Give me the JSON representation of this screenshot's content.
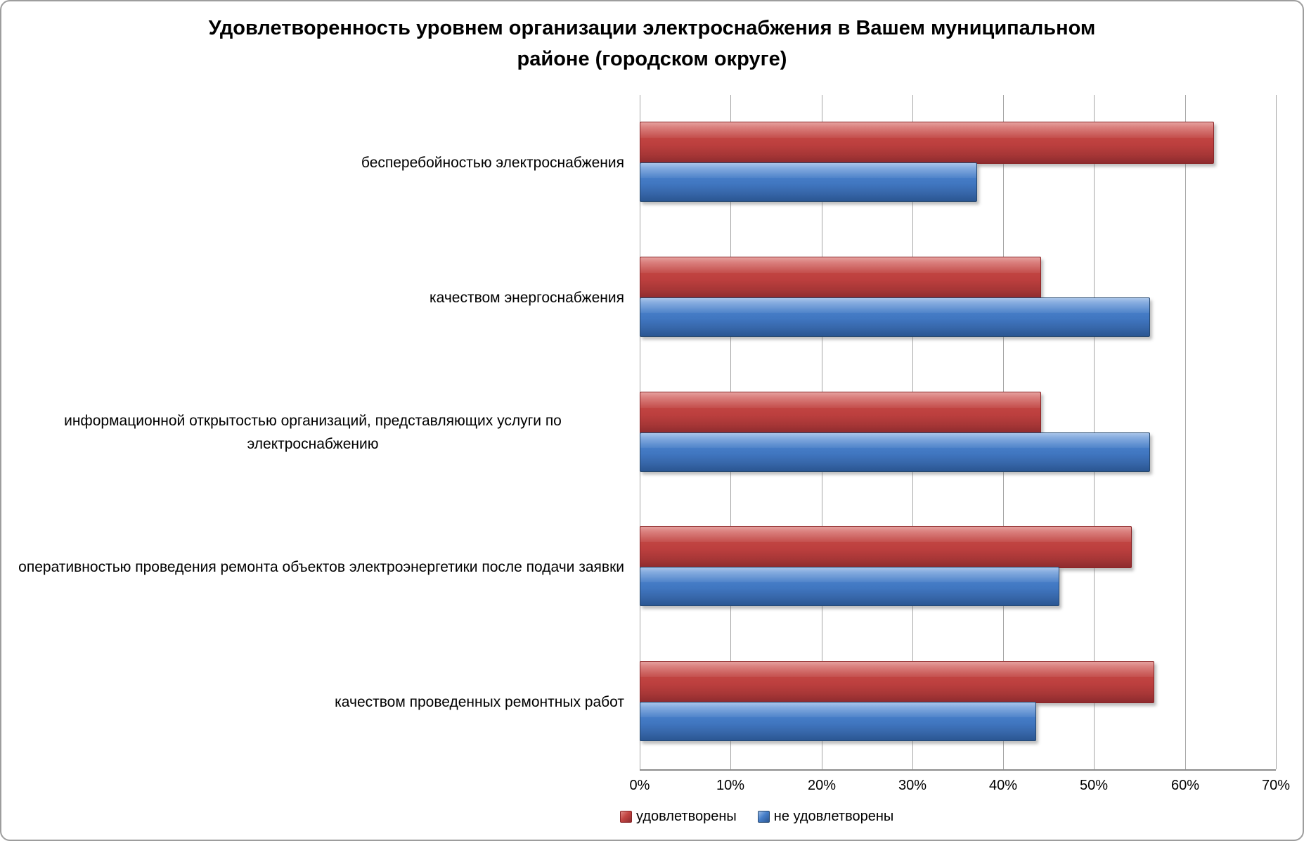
{
  "chart_data": {
    "type": "bar",
    "orientation": "horizontal",
    "title": "Удовлетворенность уровнем организации электроснабжения в Вашем муниципальном районе (городском округе)",
    "categories": [
      "бесперебойностью электроснабжения",
      "качеством энергоснабжения",
      "информационной открытостью организаций, представляющих услуги по электроснабжению",
      "оперативностью проведения ремонта объектов электроэнергетики после подачи заявки",
      "качеством проведенных ремонтных работ"
    ],
    "series": [
      {
        "name": "удовлетворены",
        "color": "#C0504D",
        "values": [
          63,
          44,
          44,
          54,
          56.5
        ]
      },
      {
        "name": "не удовлетворены",
        "color": "#4F81BD",
        "values": [
          37,
          56,
          56,
          46,
          43.5
        ]
      }
    ],
    "x_axis": {
      "min": 0,
      "max": 70,
      "step": 10,
      "tick_labels": [
        "0%",
        "10%",
        "20%",
        "30%",
        "40%",
        "50%",
        "60%",
        "70%"
      ],
      "unit": "%"
    },
    "grid": true,
    "legend_position": "bottom",
    "colors": {
      "background": "#FFFFFF",
      "gridline": "#A6A6A6",
      "text": "#000000"
    }
  }
}
